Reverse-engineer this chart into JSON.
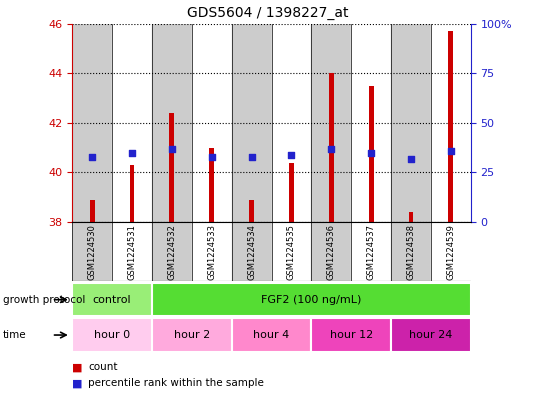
{
  "title": "GDS5604 / 1398227_at",
  "samples": [
    "GSM1224530",
    "GSM1224531",
    "GSM1224532",
    "GSM1224533",
    "GSM1224534",
    "GSM1224535",
    "GSM1224536",
    "GSM1224537",
    "GSM1224538",
    "GSM1224539"
  ],
  "count_values": [
    38.9,
    40.3,
    42.4,
    41.0,
    38.9,
    40.4,
    44.0,
    43.5,
    38.4,
    45.7
  ],
  "percentile_values": [
    33,
    35,
    37,
    33,
    33,
    34,
    37,
    35,
    32,
    36
  ],
  "ylim_left": [
    38,
    46
  ],
  "ylim_right": [
    0,
    100
  ],
  "yticks_left": [
    38,
    40,
    42,
    44,
    46
  ],
  "yticks_right": [
    0,
    25,
    50,
    75,
    100
  ],
  "bar_color": "#cc0000",
  "dot_color": "#2222cc",
  "bar_bottom": 38,
  "growth_protocol_row": {
    "label": "growth protocol",
    "groups": [
      {
        "text": "control",
        "span": [
          0,
          2
        ],
        "color": "#99ee77"
      },
      {
        "text": "FGF2 (100 ng/mL)",
        "span": [
          2,
          10
        ],
        "color": "#55dd33"
      }
    ]
  },
  "time_row": {
    "label": "time",
    "groups": [
      {
        "text": "hour 0",
        "span": [
          0,
          2
        ],
        "color": "#ffccee"
      },
      {
        "text": "hour 2",
        "span": [
          2,
          4
        ],
        "color": "#ffaadd"
      },
      {
        "text": "hour 4",
        "span": [
          4,
          6
        ],
        "color": "#ff88cc"
      },
      {
        "text": "hour 12",
        "span": [
          6,
          8
        ],
        "color": "#ee44bb"
      },
      {
        "text": "hour 24",
        "span": [
          8,
          10
        ],
        "color": "#cc22aa"
      }
    ]
  },
  "bg_color": "#ffffff",
  "sample_bg_colors": [
    "#cccccc",
    "#ffffff"
  ],
  "left_axis_color": "#cc0000",
  "right_axis_color": "#2222cc",
  "bar_width": 0.12
}
